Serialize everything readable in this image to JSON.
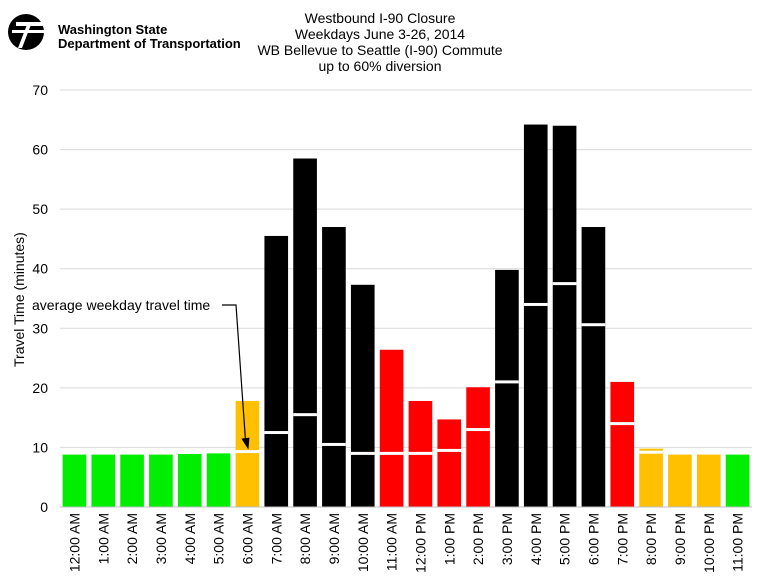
{
  "header": {
    "logo_text_line1": "Washington State",
    "logo_text_line2": "Department of Transportation"
  },
  "chart_data": {
    "type": "bar",
    "title_lines": [
      "Westbound I-90 Closure",
      "Weekdays June 3-26, 2014",
      "WB Bellevue to Seattle (I-90) Commute",
      "up to 60% diversion"
    ],
    "xlabel": "",
    "ylabel": "Travel Time (minutes)",
    "ylim": [
      0,
      70
    ],
    "yticks": [
      0,
      10,
      20,
      30,
      40,
      50,
      60,
      70
    ],
    "grid": "horizontal",
    "legend": "none",
    "categories": [
      "12:00 AM",
      "1:00 AM",
      "2:00 AM",
      "3:00 AM",
      "4:00 AM",
      "5:00 AM",
      "6:00 AM",
      "7:00 AM",
      "8:00 AM",
      "9:00 AM",
      "10:00 AM",
      "11:00 AM",
      "12:00 PM",
      "1:00 PM",
      "2:00 PM",
      "3:00 PM",
      "4:00 PM",
      "5:00 PM",
      "6:00 PM",
      "7:00 PM",
      "8:00 PM",
      "9:00 PM",
      "10:00 PM",
      "11:00 PM"
    ],
    "series": [
      {
        "values": [
          8.8,
          8.8,
          8.8,
          8.8,
          8.9,
          9.0,
          17.8,
          45.5,
          58.5,
          47.0,
          37.3,
          26.4,
          17.8,
          14.7,
          20.1,
          39.8,
          64.2,
          64.0,
          47.0,
          21.0,
          9.8,
          8.8,
          8.8,
          8.8
        ],
        "colors": [
          "#00ee00",
          "#00ee00",
          "#00ee00",
          "#00ee00",
          "#00ee00",
          "#00ee00",
          "#ffc000",
          "#000000",
          "#000000",
          "#000000",
          "#000000",
          "#ff0000",
          "#ff0000",
          "#ff0000",
          "#ff0000",
          "#000000",
          "#000000",
          "#000000",
          "#000000",
          "#ff0000",
          "#ffc000",
          "#ffc000",
          "#ffc000",
          "#00ee00"
        ]
      },
      {
        "values": [
          null,
          null,
          null,
          null,
          null,
          null,
          9.3,
          12.5,
          15.5,
          10.5,
          9.0,
          9.0,
          9.0,
          9.5,
          13.0,
          21.0,
          34.0,
          37.5,
          30.6,
          14.0,
          9.2,
          null,
          null,
          null
        ]
      }
    ],
    "annotation": "average weekday travel time",
    "colors": {
      "green": "#00ee00",
      "amber": "#ffc000",
      "red": "#ff0000",
      "black": "#000000",
      "average_marker": "#ffffff",
      "grid": "#d9d9d9"
    }
  }
}
